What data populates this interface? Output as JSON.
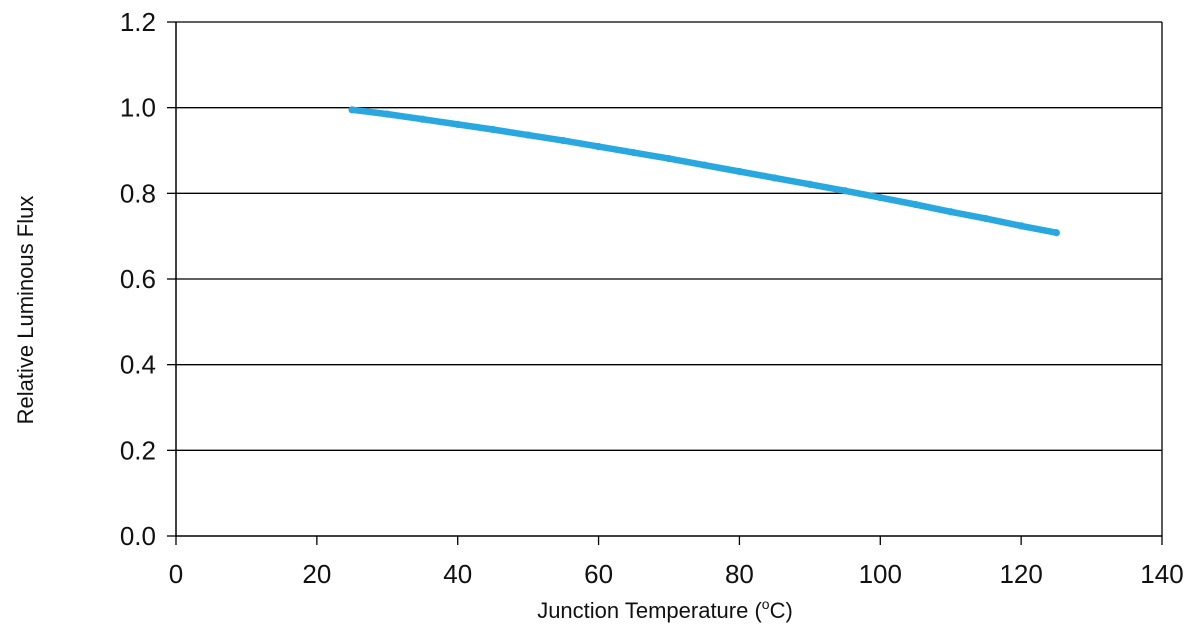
{
  "chart_data": {
    "type": "line",
    "title": "",
    "xlabel": "Junction Temperature (°C)",
    "xlabel_parts": {
      "prefix": "Junction Temperature (",
      "sup": "o",
      "suffix": "C)"
    },
    "ylabel": "Relative Luminous Flux",
    "xlim": [
      0,
      140
    ],
    "ylim": [
      0.0,
      1.2
    ],
    "x_ticks": [
      "0",
      "20",
      "40",
      "60",
      "80",
      "100",
      "120",
      "140"
    ],
    "y_ticks": [
      "0.0",
      "0.2",
      "0.4",
      "0.6",
      "0.8",
      "1.0",
      "1.2"
    ],
    "x_tick_values": [
      0,
      20,
      40,
      60,
      80,
      100,
      120,
      140
    ],
    "y_tick_values": [
      0.0,
      0.2,
      0.4,
      0.6,
      0.8,
      1.0,
      1.2
    ],
    "grid": "horizontal",
    "legend": "none",
    "series": [
      {
        "color": "#29a8e0",
        "x": [
          25,
          30,
          35,
          40,
          45,
          50,
          55,
          60,
          65,
          70,
          75,
          80,
          85,
          90,
          95,
          100,
          105,
          110,
          115,
          120,
          125
        ],
        "y": [
          0.995,
          0.985,
          0.973,
          0.961,
          0.949,
          0.936,
          0.923,
          0.909,
          0.895,
          0.881,
          0.866,
          0.851,
          0.836,
          0.821,
          0.806,
          0.79,
          0.774,
          0.757,
          0.741,
          0.724,
          0.708
        ]
      }
    ]
  }
}
